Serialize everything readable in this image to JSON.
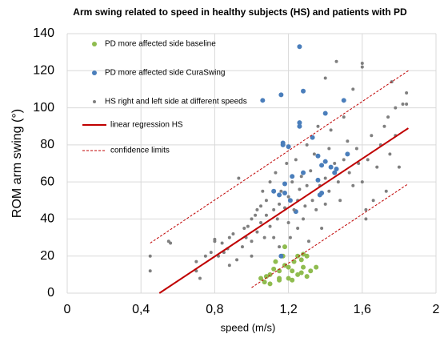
{
  "chart_data": {
    "type": "scatter",
    "title": "Arm swing related to speed in healthy subjects (HS) and patients with PD",
    "x_label": "speed (m/s)",
    "y_label": "ROM arm swing (°)",
    "xlim": [
      0,
      2
    ],
    "ylim": [
      0,
      140
    ],
    "xticks": [
      0,
      {
        "value": 0.4,
        "label": "0,4"
      },
      {
        "value": 0.8,
        "label": "0,8"
      },
      {
        "value": 1.2,
        "label": "1,2"
      },
      {
        "value": 1.6,
        "label": "1,6"
      },
      2
    ],
    "yticks": [
      0,
      20,
      40,
      60,
      80,
      100,
      120,
      140
    ],
    "grid": true,
    "series": [
      {
        "name": "PD more affected side baseline",
        "color": "#8fbc4f",
        "type": "scatter",
        "x": [
          1.05,
          1.07,
          1.08,
          1.1,
          1.1,
          1.12,
          1.13,
          1.15,
          1.15,
          1.17,
          1.18,
          1.18,
          1.2,
          1.2,
          1.22,
          1.23,
          1.25,
          1.25,
          1.27,
          1.28,
          1.28,
          1.3,
          1.3,
          1.32,
          1.35,
          1.15,
          1.22,
          1.27
        ],
        "values": [
          8,
          6,
          9,
          10,
          5,
          13,
          17,
          8,
          12,
          20,
          15,
          25,
          8,
          14,
          12,
          17,
          10,
          20,
          18,
          14,
          21,
          9,
          20,
          12,
          14,
          7,
          7,
          11
        ]
      },
      {
        "name": "PD more affected side CuraSwing",
        "color": "#4a7ebb",
        "type": "scatter",
        "x": [
          1.06,
          1.16,
          1.28,
          1.26,
          1.26,
          1.26,
          1.2,
          1.17,
          1.17,
          1.18,
          1.33,
          1.36,
          1.38,
          1.4,
          1.4,
          1.43,
          1.45,
          1.46,
          1.5,
          1.52,
          1.36,
          1.37,
          1.38,
          1.12,
          1.15,
          1.18,
          1.21,
          1.24,
          1.28,
          1.22,
          1.16
        ],
        "values": [
          104,
          107,
          109,
          133,
          92,
          90,
          79,
          80,
          81,
          59,
          84,
          74,
          69,
          71,
          97,
          68,
          65,
          67,
          104,
          75,
          61,
          53,
          54,
          55,
          53,
          54,
          50,
          44,
          65,
          63,
          20
        ]
      },
      {
        "name": "HS right and left side at different speeds",
        "color": "#7f7f7f",
        "type": "scatter",
        "x": [
          0.45,
          0.45,
          0.55,
          0.56,
          0.7,
          0.7,
          0.72,
          0.75,
          0.78,
          0.8,
          0.8,
          0.82,
          0.84,
          0.85,
          0.87,
          0.88,
          0.88,
          0.9,
          0.92,
          0.93,
          0.95,
          0.96,
          0.97,
          0.98,
          1.0,
          1.0,
          1.0,
          1.02,
          1.03,
          1.03,
          1.05,
          1.05,
          1.06,
          1.07,
          1.08,
          1.08,
          1.1,
          1.1,
          1.12,
          1.12,
          1.13,
          1.14,
          1.15,
          1.15,
          1.16,
          1.18,
          1.19,
          1.2,
          1.2,
          1.21,
          1.22,
          1.23,
          1.24,
          1.25,
          1.25,
          1.26,
          1.27,
          1.28,
          1.29,
          1.3,
          1.3,
          1.31,
          1.32,
          1.33,
          1.34,
          1.35,
          1.36,
          1.37,
          1.38,
          1.4,
          1.4,
          1.42,
          1.42,
          1.43,
          1.45,
          1.46,
          1.47,
          1.48,
          1.5,
          1.5,
          1.52,
          1.53,
          1.55,
          1.55,
          1.57,
          1.58,
          1.6,
          1.6,
          1.6,
          1.62,
          1.62,
          1.63,
          1.65,
          1.66,
          1.68,
          1.7,
          1.72,
          1.73,
          1.74,
          1.75,
          1.76,
          1.78,
          1.8,
          1.82,
          1.84,
          1.84,
          1.78,
          1.4
        ],
        "values": [
          20,
          12,
          28,
          27,
          17,
          12,
          8,
          20,
          22,
          28,
          29,
          20,
          27,
          22,
          24,
          30,
          15,
          32,
          18,
          62,
          25,
          35,
          30,
          36,
          40,
          28,
          20,
          42,
          45,
          33,
          38,
          47,
          55,
          30,
          50,
          42,
          60,
          36,
          45,
          30,
          65,
          40,
          48,
          25,
          55,
          46,
          70,
          38,
          52,
          30,
          60,
          45,
          72,
          50,
          35,
          56,
          63,
          40,
          47,
          58,
          80,
          28,
          66,
          50,
          75,
          45,
          90,
          58,
          35,
          62,
          48,
          78,
          55,
          88,
          70,
          125,
          60,
          50,
          72,
          95,
          82,
          65,
          58,
          110,
          78,
          70,
          124,
          122,
          60,
          45,
          40,
          72,
          85,
          50,
          68,
          80,
          90,
          55,
          95,
          75,
          114,
          100,
          68,
          102,
          108,
          102,
          85,
          116
        ]
      },
      {
        "name": "linear regression HS",
        "color": "#c00000",
        "type": "line",
        "x": [
          0.5,
          1.85
        ],
        "values": [
          0,
          89
        ]
      },
      {
        "name": "confidence limits",
        "color": "#c00000",
        "type": "dashed",
        "x": [
          0.45,
          1.85,
          1.85,
          1.0,
          1.85
        ],
        "values": [
          27,
          120,
          null,
          3,
          59
        ]
      }
    ]
  }
}
